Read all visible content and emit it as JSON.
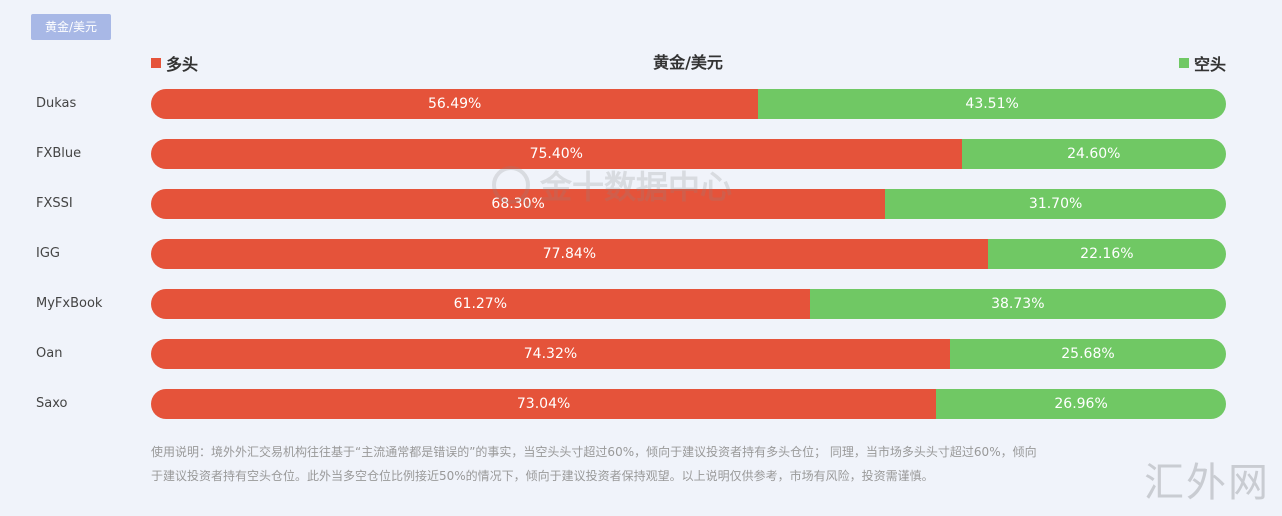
{
  "tab_label": "黄金/美元",
  "legend": {
    "long_label": "多头",
    "short_label": "空头",
    "long_color": "#e5533a",
    "short_color": "#70c864"
  },
  "chart_data": {
    "type": "bar",
    "stacked": true,
    "orientation": "horizontal",
    "title": "黄金/美元",
    "categories": [
      "Dukas",
      "FXBlue",
      "FXSSI",
      "IGG",
      "MyFxBook",
      "Oan",
      "Saxo"
    ],
    "series": [
      {
        "name": "多头",
        "values": [
          56.49,
          75.4,
          68.3,
          77.84,
          61.27,
          74.32,
          73.04
        ]
      },
      {
        "name": "空头",
        "values": [
          43.51,
          24.6,
          31.7,
          22.16,
          38.73,
          25.68,
          26.96
        ]
      }
    ],
    "labels": {
      "long": [
        "56.49%",
        "75.40%",
        "68.30%",
        "77.84%",
        "61.27%",
        "74.32%",
        "73.04%"
      ],
      "short": [
        "43.51%",
        "24.60%",
        "31.70%",
        "22.16%",
        "38.73%",
        "25.68%",
        "26.96%"
      ]
    },
    "xlim": [
      0,
      100
    ],
    "legend_position": "top"
  },
  "watermark": "金十数据中心",
  "note": {
    "line1": "使用说明：境外外汇交易机构往往基于“主流通常都是错误的”的事实，当空头头寸超过60%，倾向于建议投资者持有多头仓位； 同理，当市场多头头寸超过60%，倾向",
    "line2": "于建议投资者持有空头仓位。此外当多空仓位比例接近50%的情况下，倾向于建议投资者保持观望。以上说明仅供参考，市场有风险，投资需谨慎。"
  },
  "footer_logo": "汇外网"
}
